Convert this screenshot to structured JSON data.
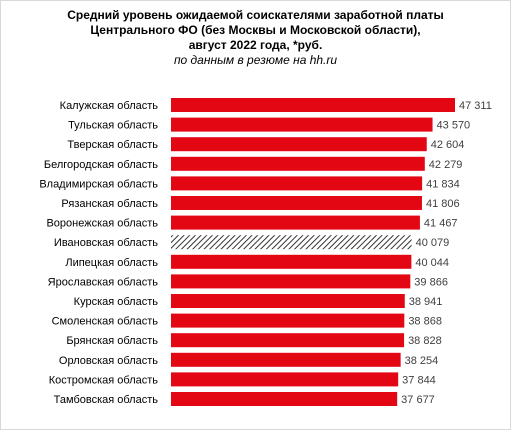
{
  "title": {
    "lines": [
      "Средний уровень ожидаемой соискателями  заработной платы",
      "Центрального ФО (без Москвы  и Московской  области),",
      "август 2022 года, *руб."
    ],
    "subtitle": "по данным в резюме на hh.ru"
  },
  "chart_data": {
    "type": "bar",
    "orientation": "horizontal",
    "categories": [
      "Калужская область",
      "Тульская область",
      "Тверская область",
      "Белгородская область",
      "Владимирская область",
      "Рязанская область",
      "Воронежская область",
      "Ивановская область",
      "Липецкая область",
      "Ярославская область",
      "Курская область",
      "Смоленская область",
      "Брянская область",
      "Орловская область",
      "Костромская область",
      "Тамбовская область"
    ],
    "values": [
      47311,
      43570,
      42604,
      42279,
      41834,
      41806,
      41467,
      40079,
      40044,
      39866,
      38941,
      38868,
      38828,
      38254,
      37844,
      37677
    ],
    "value_labels": [
      "47 311",
      "43 570",
      "42 604",
      "42 279",
      "41 834",
      "41 806",
      "41 467",
      "40 079",
      "40 044",
      "39 866",
      "38 941",
      "38 868",
      "38 828",
      "38 254",
      "37 844",
      "37 677"
    ],
    "highlighted": "Ивановская область",
    "xlim": [
      0,
      47311
    ],
    "bar_color": "#e30613",
    "highlight_pattern_color": "#333333",
    "grid": false,
    "legend": "none"
  }
}
